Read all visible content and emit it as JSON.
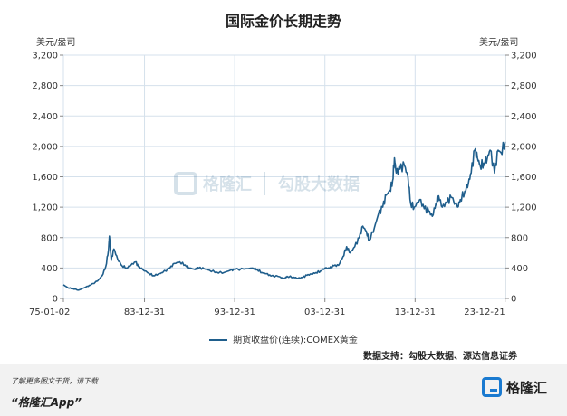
{
  "chart_data": {
    "type": "line",
    "title": "国际金价长期走势",
    "ylabel_left": "美元/盎司",
    "ylabel_right": "美元/盎司",
    "ylim": [
      0,
      3200
    ],
    "yticks": [
      0,
      400,
      800,
      1200,
      1600,
      2000,
      2400,
      2800,
      3200
    ],
    "ytick_labels": [
      "0",
      "400",
      "800",
      "1,200",
      "1,600",
      "2,000",
      "2,400",
      "2,800",
      "3,200"
    ],
    "xlim": [
      1975.0,
      2024.0
    ],
    "xticks": [
      1975.0,
      1983.99,
      1993.99,
      2003.99,
      2013.99,
      2023.97
    ],
    "xtick_labels": [
      "75-01-02",
      "83-12-31",
      "93-12-31",
      "03-12-31",
      "13-12-31",
      "23-12-21"
    ],
    "grid": true,
    "legend_position": "bottom-center",
    "series": [
      {
        "name": "期货收盘价(连续):COMEX黄金",
        "color": "#1f5e8c",
        "x": [
          1975.0,
          1975.5,
          1976.0,
          1976.7,
          1977.5,
          1978.0,
          1978.8,
          1979.3,
          1979.7,
          1980.0,
          1980.1,
          1980.3,
          1980.6,
          1981.0,
          1981.5,
          1982.0,
          1982.5,
          1983.0,
          1983.3,
          1983.8,
          1984.5,
          1985.0,
          1985.5,
          1986.0,
          1986.8,
          1987.3,
          1987.9,
          1988.5,
          1989.0,
          1989.6,
          1990.0,
          1990.6,
          1991.2,
          1992.0,
          1992.8,
          1993.5,
          1994.0,
          1995.0,
          1996.0,
          1996.5,
          1997.0,
          1997.5,
          1998.0,
          1998.8,
          1999.5,
          1999.8,
          2000.5,
          2001.0,
          2001.5,
          2002.0,
          2002.5,
          2003.0,
          2003.5,
          2004.0,
          2004.5,
          2005.0,
          2005.5,
          2006.0,
          2006.4,
          2006.8,
          2007.3,
          2007.8,
          2008.2,
          2008.6,
          2008.9,
          2009.5,
          2009.9,
          2010.4,
          2010.8,
          2011.2,
          2011.5,
          2011.7,
          2011.9,
          2012.3,
          2012.8,
          2013.2,
          2013.5,
          2013.9,
          2014.5,
          2015.0,
          2015.5,
          2015.9,
          2016.3,
          2016.6,
          2017.0,
          2017.5,
          2018.0,
          2018.7,
          2019.0,
          2019.5,
          2019.9,
          2020.2,
          2020.6,
          2020.9,
          2021.2,
          2021.6,
          2022.0,
          2022.3,
          2022.8,
          2023.2,
          2023.5,
          2023.97
        ],
        "y": [
          180,
          140,
          130,
          110,
          150,
          175,
          230,
          300,
          420,
          640,
          820,
          500,
          650,
          520,
          430,
          400,
          440,
          480,
          420,
          380,
          330,
          300,
          320,
          340,
          400,
          460,
          480,
          440,
          400,
          380,
          400,
          390,
          370,
          345,
          340,
          370,
          380,
          385,
          400,
          380,
          340,
          325,
          295,
          290,
          260,
          290,
          280,
          265,
          275,
          305,
          320,
          340,
          360,
          400,
          395,
          430,
          435,
          550,
          680,
          600,
          680,
          800,
          950,
          880,
          760,
          940,
          1100,
          1200,
          1360,
          1420,
          1550,
          1850,
          1650,
          1700,
          1750,
          1600,
          1250,
          1200,
          1300,
          1180,
          1150,
          1080,
          1250,
          1350,
          1200,
          1260,
          1330,
          1200,
          1300,
          1410,
          1520,
          1650,
          1950,
          1850,
          1750,
          1780,
          1850,
          1950,
          1650,
          1950,
          1920,
          2060
        ]
      }
    ]
  },
  "source_text": "数据支持：勾股大数据、源达信息证券",
  "watermark": {
    "brand": "格隆汇",
    "brand2": "勾股大数据"
  },
  "footer": {
    "promo": "了解更多图文干货，请下载",
    "app": "“格隆汇App”",
    "brand": "格隆汇"
  }
}
